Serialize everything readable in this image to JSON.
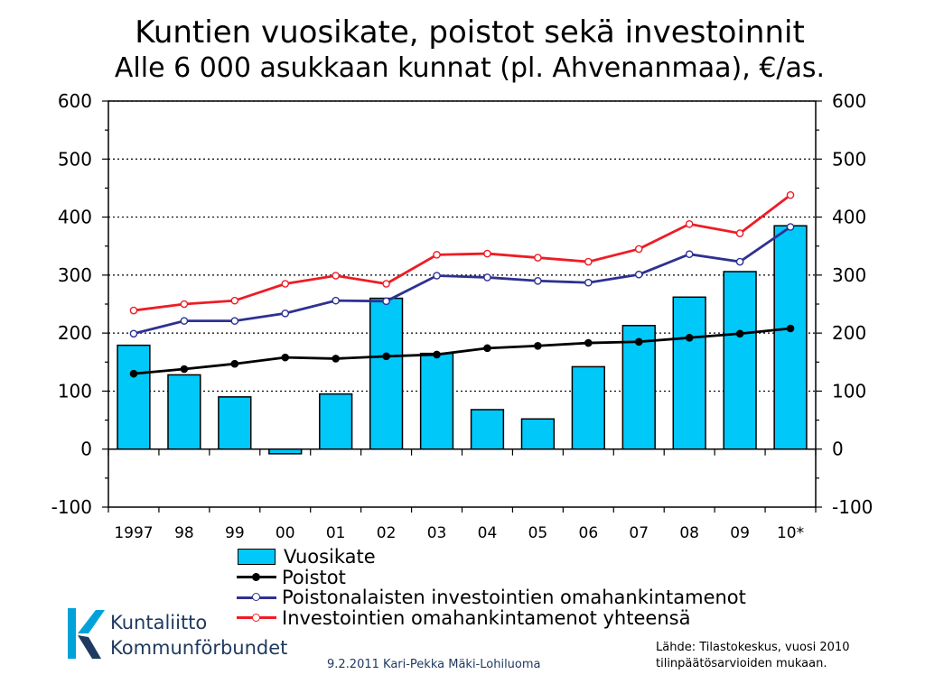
{
  "title": "Kuntien vuosikate, poistot sekä investoinnit",
  "subtitle": "Alle 6 000 asukkaan kunnat (pl. Ahvenanmaa), €/as.",
  "colors": {
    "bar": "#00c8f8",
    "poistot": "#000000",
    "poistonalaiset": "#2e3192",
    "yhteensa": "#ee1c25",
    "grid": "#000000"
  },
  "chart_data": {
    "type": "bar",
    "categories": [
      "1997",
      "98",
      "99",
      "00",
      "01",
      "02",
      "03",
      "04",
      "05",
      "06",
      "07",
      "08",
      "09",
      "10*"
    ],
    "ylim": [
      -100,
      600
    ],
    "yticks": [
      "600",
      "500",
      "400",
      "300",
      "200",
      "100",
      "0",
      "-100"
    ],
    "grid": "dotted horizontal",
    "legend_position": "bottom",
    "series": [
      {
        "name": "Vuosikate",
        "kind": "bar",
        "values": [
          179,
          128,
          90,
          -8,
          95,
          260,
          165,
          68,
          52,
          142,
          213,
          262,
          306,
          385
        ]
      },
      {
        "name": "Poistot",
        "kind": "line",
        "values": [
          130,
          138,
          147,
          158,
          156,
          160,
          163,
          174,
          178,
          183,
          185,
          192,
          199,
          208
        ]
      },
      {
        "name": "Poistonalaisten investointien omahankintamenot",
        "kind": "line",
        "values": [
          199,
          221,
          221,
          234,
          256,
          255,
          299,
          296,
          290,
          287,
          301,
          336,
          323,
          383
        ]
      },
      {
        "name": "Investointien omahankintamenot yhteensä",
        "kind": "line",
        "values": [
          239,
          250,
          256,
          285,
          299,
          285,
          335,
          337,
          330,
          323,
          345,
          388,
          372,
          438
        ]
      }
    ]
  },
  "logo": {
    "line1": "Kuntaliitto",
    "line2": "Kommunförbundet"
  },
  "footer": "9.2.2011 Kari-Pekka Mäki-Lohiluoma",
  "source": {
    "line1": "Lähde: Tilastokeskus, vuosi 2010",
    "line2": "tilinpäätösarvioiden mukaan."
  }
}
